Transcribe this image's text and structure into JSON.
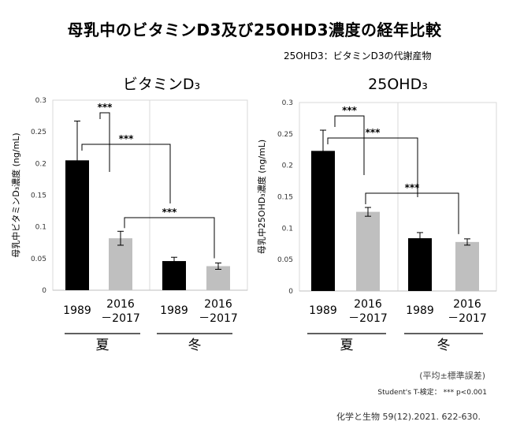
{
  "title": "母乳中のビタミンD3及び25OHD3濃度の経年比較",
  "subtitle": "25OHD3：ビタミンD3の代謝産物",
  "footnote_mean": "(平均±標準誤差)",
  "footnote_test": "Student's T-検定： *** p<0.001",
  "citation": "化学と生物 59(12).2021. 622-630.",
  "chart_data": [
    {
      "type": "bar",
      "title": "ビタミンD₃",
      "ylabel": "母乳中ビタミンD₃濃度 (ng/mL)",
      "ylim": [
        0,
        0.3
      ],
      "yticks": [
        "0",
        "0.05",
        "0.1",
        "0.15",
        "0.2",
        "0.25",
        "0.3"
      ],
      "categories": [
        "1989",
        "2016\n－2017",
        "1989",
        "2016\n－2017"
      ],
      "groups": [
        "夏",
        "冬"
      ],
      "values": [
        0.205,
        0.082,
        0.046,
        0.038
      ],
      "errors": [
        0.062,
        0.011,
        0.006,
        0.005
      ],
      "colors": [
        "#000000",
        "#bfbfbf",
        "#000000",
        "#bfbfbf"
      ],
      "significance": [
        {
          "from": 0,
          "to": 1,
          "label": "***"
        },
        {
          "from": 0,
          "to": 2,
          "label": "***"
        },
        {
          "from": 1,
          "to": 3,
          "label": "***"
        }
      ]
    },
    {
      "type": "bar",
      "title": "25OHD₃",
      "ylabel": "母乳中25OHD₃濃度 (ng/mL)",
      "ylim": [
        0,
        0.3
      ],
      "yticks": [
        "0",
        "0.05",
        "0.1",
        "0.15",
        "0.2",
        "0.25",
        "0.3"
      ],
      "categories": [
        "1989",
        "2016\n－2017",
        "1989",
        "2016\n－2017"
      ],
      "groups": [
        "夏",
        "冬"
      ],
      "values": [
        0.223,
        0.126,
        0.084,
        0.078
      ],
      "errors": [
        0.033,
        0.007,
        0.009,
        0.005
      ],
      "colors": [
        "#000000",
        "#bfbfbf",
        "#000000",
        "#bfbfbf"
      ],
      "significance": [
        {
          "from": 0,
          "to": 1,
          "label": "***"
        },
        {
          "from": 0,
          "to": 2,
          "label": "***"
        },
        {
          "from": 1,
          "to": 3,
          "label": "***"
        }
      ]
    }
  ]
}
